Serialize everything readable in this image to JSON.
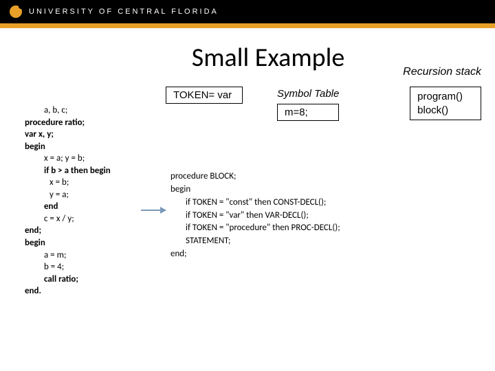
{
  "header": {
    "university": "UNIVERSITY OF CENTRAL FLORIDA",
    "bg_color": "#000000",
    "accent_color": "#e8a028",
    "text_color": "#ffffff"
  },
  "title": "Small Example",
  "recursion_label": "Recursion stack",
  "token_box": "TOKEN= var",
  "symbol_table": {
    "label": "Symbol Table",
    "entry": "m=8;"
  },
  "stack": {
    "line1": "program()",
    "line2": "block()"
  },
  "left_code": {
    "l0": "a, b, c;",
    "l1": "procedure ratio;",
    "l2": "var x, y;",
    "l3": "begin",
    "l4": "x = a;  y = b;",
    "l5": "if b > a then begin",
    "l6": "x = b;",
    "l7": "y = a;",
    "l8": "end",
    "l9": "c = x / y;",
    "l10": "end;",
    "l11": "begin",
    "l12": "a = m;",
    "l13": "b = 4;",
    "l14": "call ratio;",
    "l15": "end."
  },
  "right_code": {
    "r0": "procedure BLOCK;",
    "r1": "begin",
    "r2": "if TOKEN = \"const\" then CONST-DECL();",
    "r3": "if TOKEN = \"var\" then VAR-DECL();",
    "r4": "if TOKEN = \"procedure\" then  PROC-DECL();",
    "r5": "STATEMENT;",
    "r6": "end;"
  },
  "arrow_color": "#7a99b8",
  "fonts": {
    "title_size": 38,
    "body_size": 13,
    "box_size": 15
  }
}
